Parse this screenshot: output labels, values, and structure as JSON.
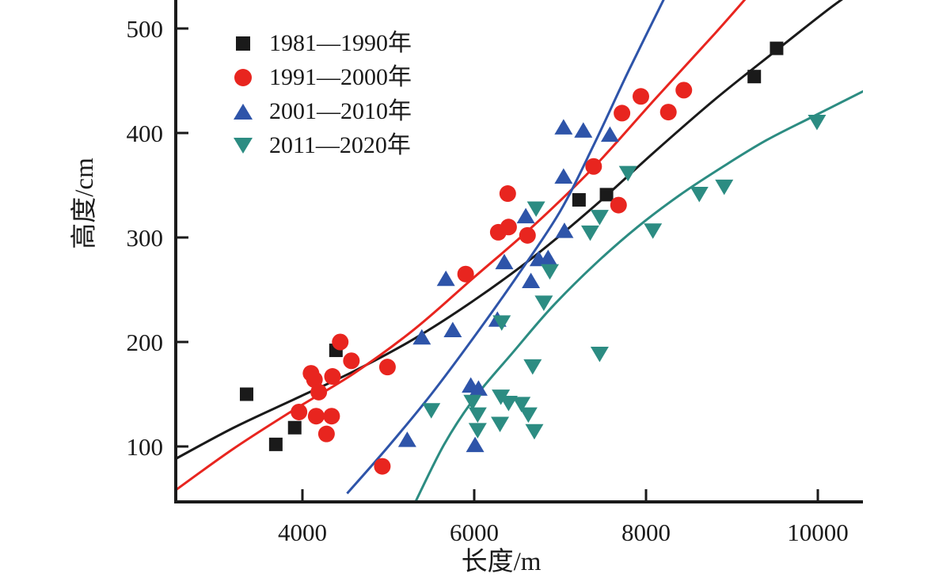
{
  "chart_data": {
    "type": "scatter",
    "title": "",
    "xlabel": "长度/m",
    "ylabel": "高度/cm",
    "xlim": [
      2500,
      10500
    ],
    "ylim": [
      45,
      527
    ],
    "x_ticks": [
      4000,
      6000,
      8000,
      10000
    ],
    "y_ticks": [
      100,
      200,
      300,
      400,
      500
    ],
    "grid": false,
    "legend_position": "top-left",
    "axis_color": "#1a1a1a",
    "series": [
      {
        "name": "1981—1990年",
        "marker": "square",
        "color": "#1a1a1a",
        "points": [
          [
            3350,
            150
          ],
          [
            3690,
            102
          ],
          [
            3910,
            118
          ],
          [
            4390,
            192
          ],
          [
            7220,
            336
          ],
          [
            7540,
            341
          ],
          [
            9260,
            454
          ],
          [
            9520,
            481
          ]
        ],
        "trend": [
          [
            2520,
            88
          ],
          [
            3200,
            118
          ],
          [
            3900,
            145
          ],
          [
            4600,
            172
          ],
          [
            5300,
            203
          ],
          [
            6000,
            240
          ],
          [
            6700,
            282
          ],
          [
            7400,
            330
          ],
          [
            8100,
            382
          ],
          [
            8800,
            432
          ],
          [
            9500,
            478
          ],
          [
            10150,
            520
          ],
          [
            10530,
            542
          ]
        ]
      },
      {
        "name": "1991—2000年",
        "marker": "circle",
        "color": "#e8251f",
        "points": [
          [
            3960,
            133
          ],
          [
            4100,
            170
          ],
          [
            4140,
            164
          ],
          [
            4160,
            129
          ],
          [
            4190,
            152
          ],
          [
            4280,
            112
          ],
          [
            4340,
            129
          ],
          [
            4350,
            167
          ],
          [
            4440,
            200
          ],
          [
            4570,
            182
          ],
          [
            4930,
            81
          ],
          [
            4990,
            176
          ],
          [
            5900,
            265
          ],
          [
            6280,
            305
          ],
          [
            6390,
            342
          ],
          [
            6400,
            310
          ],
          [
            6620,
            302
          ],
          [
            7390,
            368
          ],
          [
            7680,
            331
          ],
          [
            7720,
            419
          ],
          [
            7940,
            435
          ],
          [
            8260,
            420
          ],
          [
            8440,
            441
          ]
        ],
        "trend": [
          [
            2520,
            58
          ],
          [
            3200,
            98
          ],
          [
            3900,
            135
          ],
          [
            4600,
            170
          ],
          [
            5300,
            212
          ],
          [
            6000,
            262
          ],
          [
            6700,
            312
          ],
          [
            7400,
            368
          ],
          [
            8100,
            432
          ],
          [
            8800,
            495
          ],
          [
            9260,
            538
          ]
        ]
      },
      {
        "name": "2001—2010年",
        "marker": "triangle-up",
        "color": "#2e54a9",
        "points": [
          [
            5220,
            106
          ],
          [
            5390,
            204
          ],
          [
            5670,
            260
          ],
          [
            5750,
            211
          ],
          [
            5960,
            158
          ],
          [
            6010,
            101
          ],
          [
            6050,
            155
          ],
          [
            6270,
            221
          ],
          [
            6350,
            276
          ],
          [
            6600,
            320
          ],
          [
            6660,
            258
          ],
          [
            6750,
            279
          ],
          [
            6860,
            280
          ],
          [
            7040,
            358
          ],
          [
            7040,
            405
          ],
          [
            7050,
            306
          ],
          [
            7270,
            402
          ],
          [
            7580,
            398
          ]
        ],
        "trend": [
          [
            4520,
            55
          ],
          [
            5000,
            100
          ],
          [
            5500,
            150
          ],
          [
            6000,
            205
          ],
          [
            6500,
            263
          ],
          [
            7000,
            325
          ],
          [
            7400,
            390
          ],
          [
            7800,
            460
          ],
          [
            8310,
            545
          ]
        ]
      },
      {
        "name": "2011—2020年",
        "marker": "triangle-down",
        "color": "#2c8c82",
        "points": [
          [
            5500,
            135
          ],
          [
            5980,
            143
          ],
          [
            6040,
            131
          ],
          [
            6040,
            116
          ],
          [
            6300,
            122
          ],
          [
            6310,
            148
          ],
          [
            6320,
            219
          ],
          [
            6400,
            142
          ],
          [
            6550,
            141
          ],
          [
            6630,
            131
          ],
          [
            6680,
            177
          ],
          [
            6700,
            115
          ],
          [
            6720,
            328
          ],
          [
            6810,
            238
          ],
          [
            6880,
            268
          ],
          [
            7350,
            305
          ],
          [
            7460,
            189
          ],
          [
            7460,
            320
          ],
          [
            7790,
            362
          ],
          [
            8080,
            307
          ],
          [
            8620,
            342
          ],
          [
            8910,
            349
          ],
          [
            9990,
            411
          ]
        ],
        "trend": [
          [
            5310,
            46
          ],
          [
            5650,
            102
          ],
          [
            6000,
            146
          ],
          [
            6450,
            190
          ],
          [
            6900,
            233
          ],
          [
            7400,
            274
          ],
          [
            7900,
            310
          ],
          [
            8400,
            341
          ],
          [
            8900,
            368
          ],
          [
            9400,
            393
          ],
          [
            9950,
            416
          ],
          [
            10530,
            440
          ]
        ]
      }
    ]
  }
}
